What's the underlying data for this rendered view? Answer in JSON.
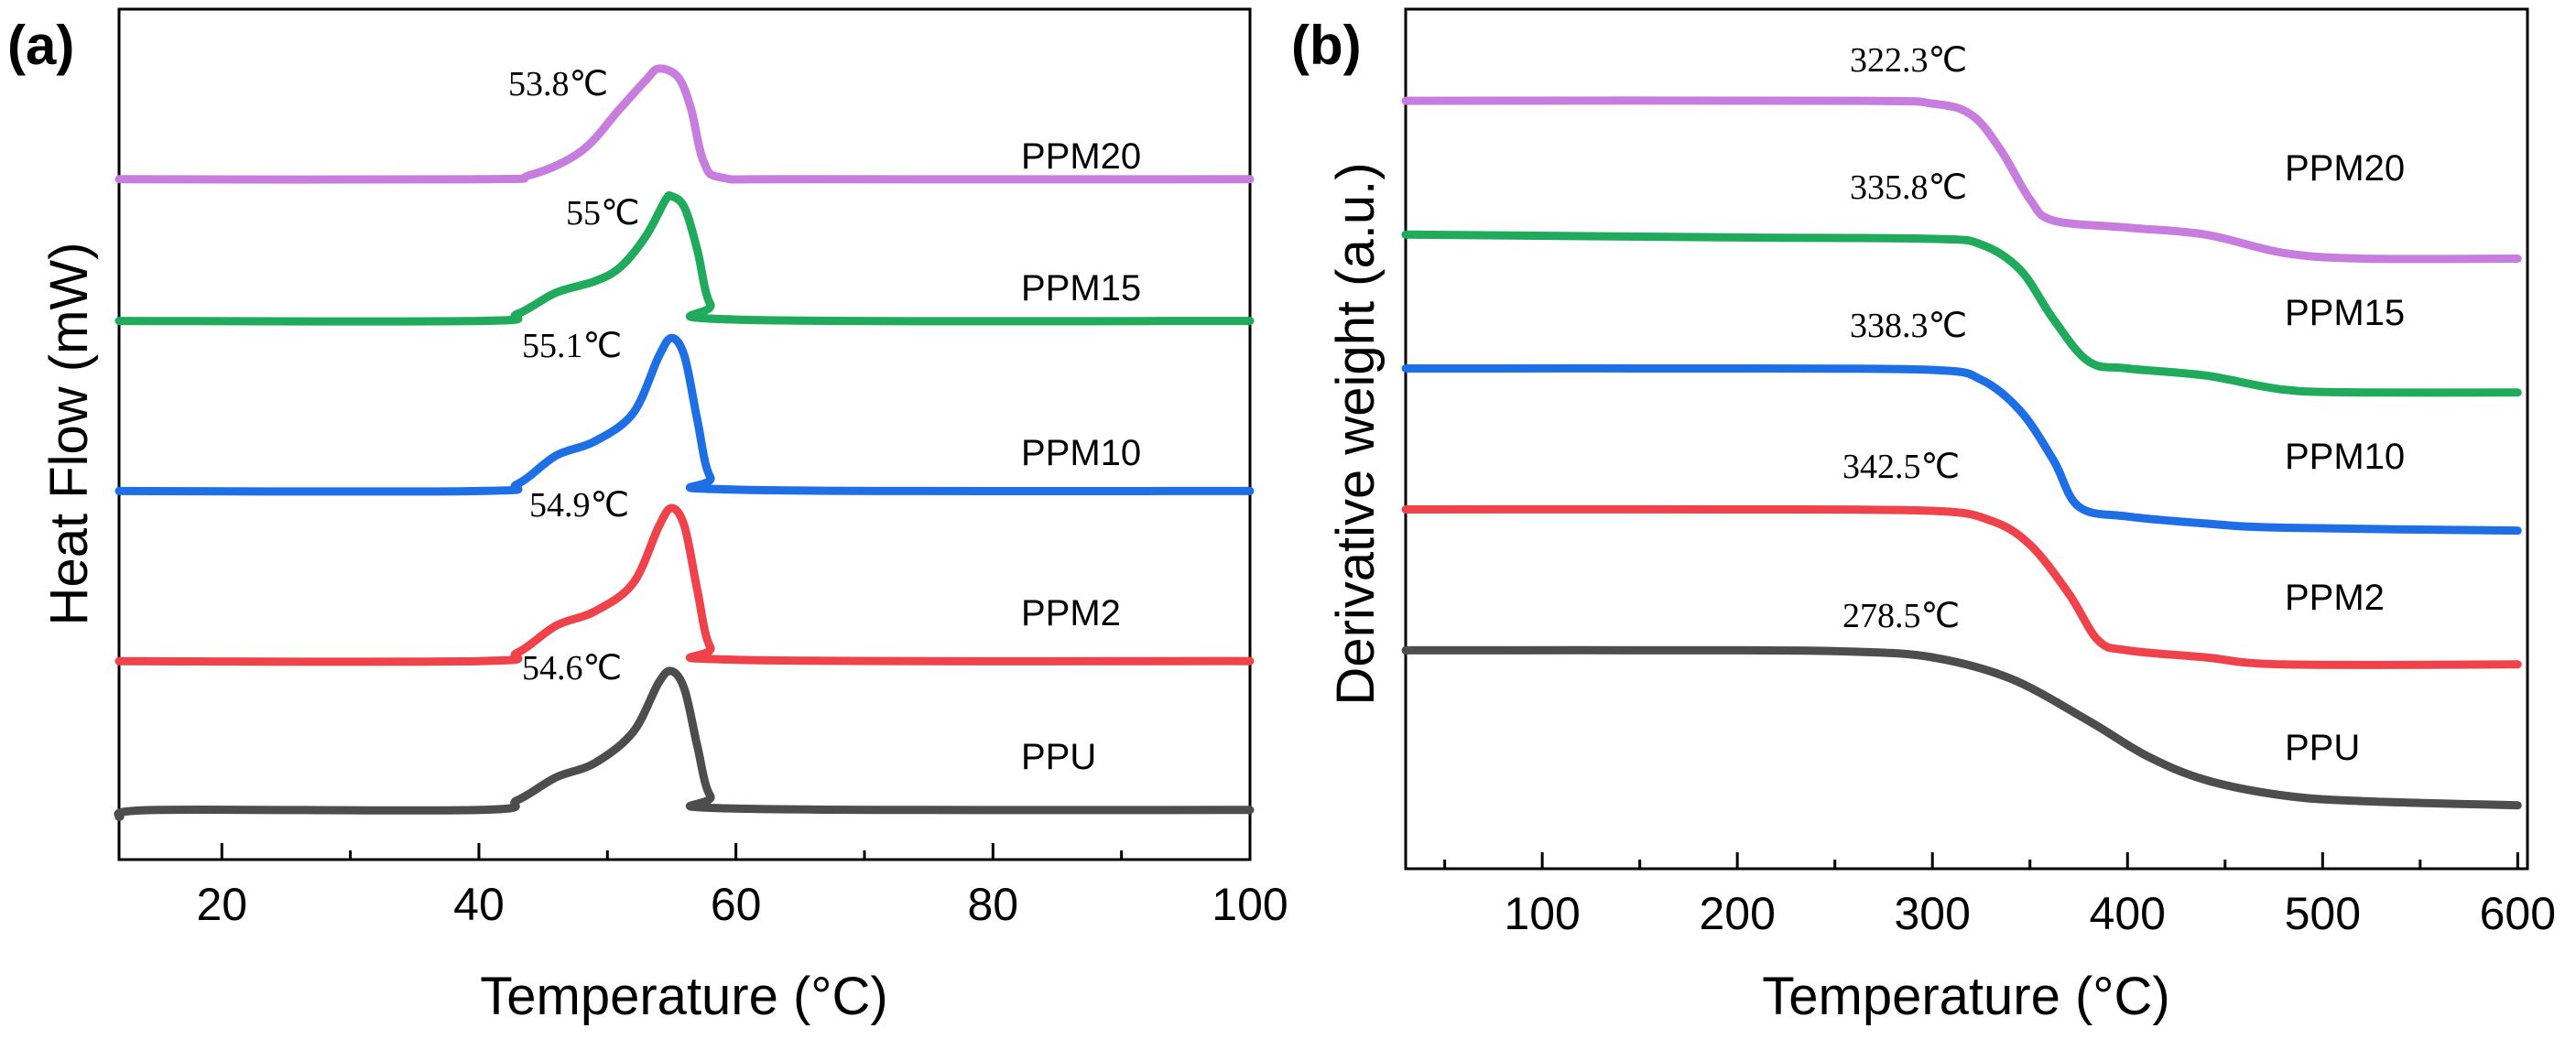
{
  "chart_data": [
    {
      "type": "line",
      "panel_label": "(a)",
      "xlabel": "Temperature (°C)",
      "ylabel": "Heat Flow (mW)",
      "xlim": [
        12,
        100
      ],
      "xticks": [
        20,
        40,
        60,
        80,
        100
      ],
      "xtick_labels": [
        "20",
        "40",
        "60",
        "80",
        "100"
      ],
      "y_offset_units": true,
      "series": [
        {
          "name": "PPM20",
          "color": "#c77dde",
          "baseline": 4.0,
          "peak_height": 0.78,
          "peak_x": 53.8,
          "annotation": "53.8℃",
          "points": [
            [
              12,
              4.0
            ],
            [
              40,
              4.0
            ],
            [
              44,
              4.03
            ],
            [
              48,
              4.2
            ],
            [
              51,
              4.5
            ],
            [
              53,
              4.7
            ],
            [
              54,
              4.78
            ],
            [
              55.5,
              4.72
            ],
            [
              56.5,
              4.5
            ],
            [
              57.5,
              4.12
            ],
            [
              59,
              4.01
            ],
            [
              65,
              4.0
            ],
            [
              100,
              4.0
            ]
          ]
        },
        {
          "name": "PPM15",
          "color": "#1faa5c",
          "baseline": 3.0,
          "peak_height": 0.88,
          "peak_x": 55,
          "annotation": "55℃",
          "points": [
            [
              12,
              3.0
            ],
            [
              40,
              3.0
            ],
            [
              43,
              3.05
            ],
            [
              46,
              3.2
            ],
            [
              49,
              3.28
            ],
            [
              51,
              3.38
            ],
            [
              53,
              3.6
            ],
            [
              54.5,
              3.85
            ],
            [
              55,
              3.88
            ],
            [
              56,
              3.8
            ],
            [
              57,
              3.5
            ],
            [
              58,
              3.12
            ],
            [
              60,
              3.01
            ],
            [
              100,
              3.0
            ]
          ]
        },
        {
          "name": "PPM10",
          "color": "#1e6fe6",
          "baseline": 1.8,
          "peak_height": 1.08,
          "peak_x": 55.1,
          "annotation": "55.1℃",
          "points": [
            [
              12,
              1.8
            ],
            [
              40,
              1.8
            ],
            [
              43,
              1.85
            ],
            [
              46,
              2.05
            ],
            [
              49,
              2.15
            ],
            [
              52,
              2.35
            ],
            [
              54,
              2.75
            ],
            [
              55,
              2.88
            ],
            [
              56,
              2.75
            ],
            [
              57,
              2.3
            ],
            [
              58,
              1.9
            ],
            [
              60,
              1.81
            ],
            [
              100,
              1.8
            ]
          ]
        },
        {
          "name": "PPM2",
          "color": "#f0424a",
          "baseline": 0.6,
          "peak_height": 1.08,
          "peak_x": 54.9,
          "annotation": "54.9℃",
          "points": [
            [
              12,
              0.6
            ],
            [
              40,
              0.6
            ],
            [
              43,
              0.66
            ],
            [
              46,
              0.85
            ],
            [
              49,
              0.95
            ],
            [
              52,
              1.15
            ],
            [
              54,
              1.55
            ],
            [
              55,
              1.68
            ],
            [
              56,
              1.55
            ],
            [
              57,
              1.1
            ],
            [
              58,
              0.7
            ],
            [
              60,
              0.61
            ],
            [
              100,
              0.6
            ]
          ]
        },
        {
          "name": "PPU",
          "color": "#4d4d4d",
          "baseline": -0.45,
          "peak_height": 0.98,
          "peak_x": 54.6,
          "annotation": "54.6℃",
          "points": [
            [
              12,
              -0.5
            ],
            [
              15,
              -0.45
            ],
            [
              40,
              -0.45
            ],
            [
              43,
              -0.38
            ],
            [
              46,
              -0.22
            ],
            [
              49,
              -0.12
            ],
            [
              52,
              0.1
            ],
            [
              54,
              0.45
            ],
            [
              55,
              0.53
            ],
            [
              56,
              0.4
            ],
            [
              57,
              0.0
            ],
            [
              58,
              -0.35
            ],
            [
              60,
              -0.44
            ],
            [
              100,
              -0.45
            ]
          ]
        }
      ],
      "ylim": [
        -0.8,
        5.2
      ]
    },
    {
      "type": "line",
      "panel_label": "(b)",
      "xlabel": "Temperature (°C)",
      "ylabel": "Derivative weight (a.u.)",
      "xlim": [
        30,
        605
      ],
      "xticks": [
        100,
        200,
        300,
        400,
        500,
        600
      ],
      "xtick_labels": [
        "100",
        "200",
        "300",
        "400",
        "500",
        "600"
      ],
      "series": [
        {
          "name": "PPM20",
          "color": "#c77dde",
          "annotation": "322.3℃",
          "points": [
            [
              30,
              5.0
            ],
            [
              260,
              5.0
            ],
            [
              300,
              4.98
            ],
            [
              320,
              4.9
            ],
            [
              335,
              4.65
            ],
            [
              350,
              4.3
            ],
            [
              362,
              4.15
            ],
            [
              400,
              4.1
            ],
            [
              440,
              4.05
            ],
            [
              480,
              3.92
            ],
            [
              520,
              3.88
            ],
            [
              600,
              3.88
            ]
          ]
        },
        {
          "name": "PPM15",
          "color": "#1faa5c",
          "annotation": "335.8℃",
          "points": [
            [
              30,
              4.05
            ],
            [
              200,
              4.03
            ],
            [
              300,
              4.02
            ],
            [
              325,
              3.98
            ],
            [
              345,
              3.8
            ],
            [
              362,
              3.45
            ],
            [
              380,
              3.15
            ],
            [
              400,
              3.1
            ],
            [
              440,
              3.05
            ],
            [
              480,
              2.95
            ],
            [
              520,
              2.93
            ],
            [
              600,
              2.93
            ]
          ]
        },
        {
          "name": "PPM10",
          "color": "#1e6fe6",
          "annotation": "338.3℃",
          "points": [
            [
              30,
              3.1
            ],
            [
              200,
              3.1
            ],
            [
              300,
              3.09
            ],
            [
              325,
              3.02
            ],
            [
              345,
              2.8
            ],
            [
              362,
              2.45
            ],
            [
              375,
              2.12
            ],
            [
              400,
              2.05
            ],
            [
              440,
              2.0
            ],
            [
              480,
              1.97
            ],
            [
              600,
              1.95
            ]
          ]
        },
        {
          "name": "PPM2",
          "color": "#f0424a",
          "annotation": "342.5℃",
          "points": [
            [
              30,
              2.1
            ],
            [
              200,
              2.1
            ],
            [
              300,
              2.09
            ],
            [
              330,
              2.02
            ],
            [
              350,
              1.85
            ],
            [
              370,
              1.5
            ],
            [
              385,
              1.17
            ],
            [
              400,
              1.1
            ],
            [
              440,
              1.05
            ],
            [
              480,
              1.0
            ],
            [
              600,
              1.0
            ]
          ]
        },
        {
          "name": "PPU",
          "color": "#4d4d4d",
          "annotation": "278.5℃",
          "points": [
            [
              30,
              1.1
            ],
            [
              200,
              1.1
            ],
            [
              260,
              1.09
            ],
            [
              300,
              1.05
            ],
            [
              340,
              0.9
            ],
            [
              380,
              0.6
            ],
            [
              410,
              0.35
            ],
            [
              440,
              0.18
            ],
            [
              480,
              0.07
            ],
            [
              520,
              0.03
            ],
            [
              600,
              0.0
            ]
          ]
        }
      ],
      "ylim": [
        -0.45,
        5.65
      ]
    }
  ]
}
